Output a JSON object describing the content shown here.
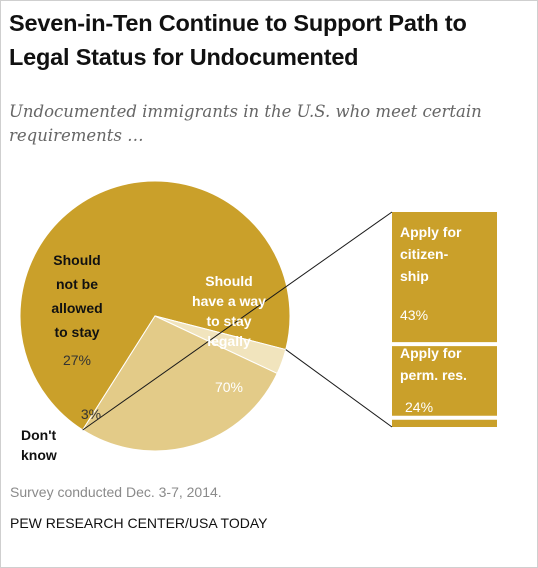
{
  "title": "Seven-in-Ten  Continue to Support Path to Legal Status for Undocumented",
  "subtitle": "Undocumented immigrants in the U.S. who meet certain requirements …",
  "note": "Survey conducted Dec. 3-7, 2014.",
  "source": "PEW RESEARCH CENTER/USA TODAY",
  "colors": {
    "legal": "#caa02a",
    "not_allowed": "#e3cb88",
    "dont_know": "#f1e4bd",
    "bar_divider": "#ffffff",
    "connector": "#1a1a1a"
  },
  "chart_data": [
    {
      "type": "pie",
      "slices": [
        {
          "key": "legal",
          "label": [
            "Should",
            "have a way",
            "to stay",
            "legally"
          ],
          "value": 70,
          "value_label": "70%"
        },
        {
          "key": "dont_know",
          "label": [
            "Don't",
            "know"
          ],
          "value": 3,
          "value_label": "3%"
        },
        {
          "key": "not_allowed",
          "label": [
            "Should",
            "not be",
            "allowed",
            "to stay"
          ],
          "value": 27,
          "value_label": "27%"
        }
      ]
    },
    {
      "type": "bar",
      "stacked": true,
      "breakdown_of": "legal",
      "segments": [
        {
          "label": [
            "Apply for",
            "citizen-",
            "ship"
          ],
          "value": 43,
          "value_label": "43%"
        },
        {
          "label": [
            "Apply for",
            "perm. res."
          ],
          "value": 24,
          "value_label": "24%"
        },
        {
          "label": [],
          "value": 3,
          "value_label": ""
        }
      ]
    }
  ]
}
